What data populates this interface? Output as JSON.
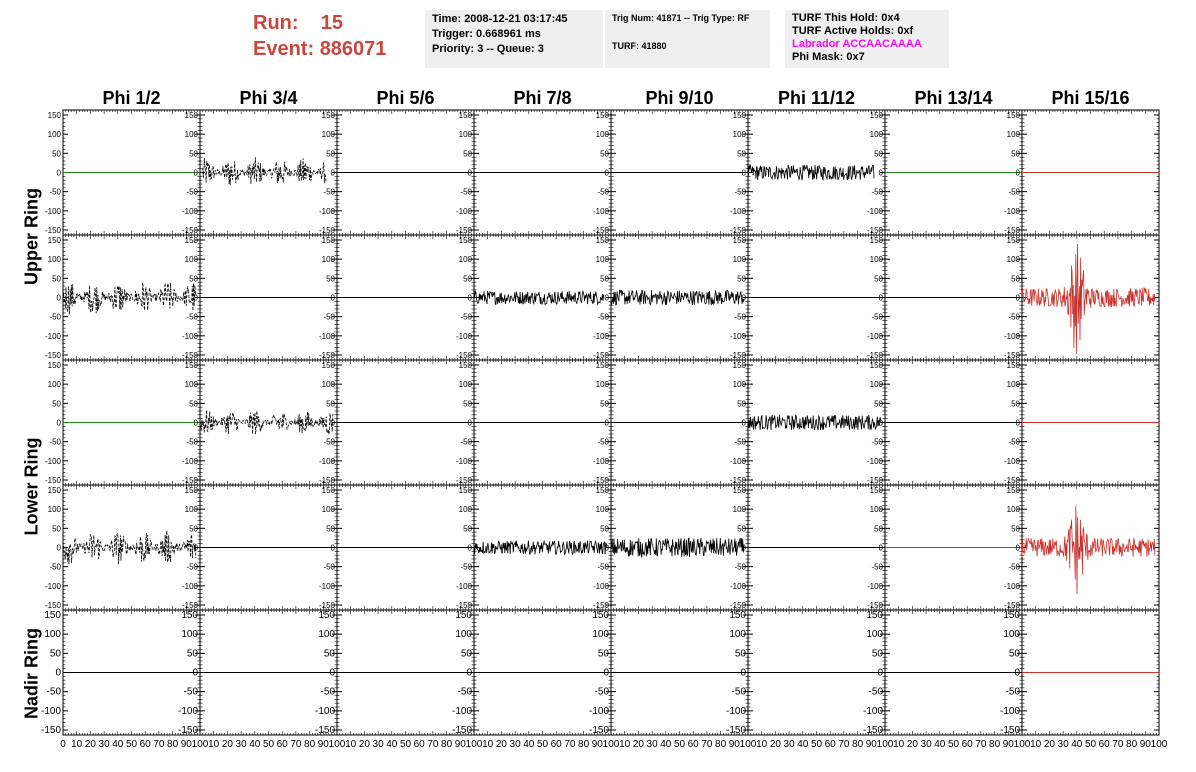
{
  "header": {
    "run_label": "Run:",
    "run_value": "15",
    "event_label": "Event:",
    "event_value": "886071"
  },
  "info_box_1": {
    "time": "Time: 2008-12-21 03:17:45",
    "trigger": "Trigger: 0.668961 ms",
    "priority": "Priority: 3 -- Queue: 3"
  },
  "info_box_2": {
    "trig": "Trig Num: 41871 -- Trig Type: RF",
    "turf": "TURF: 41880"
  },
  "info_box_3": {
    "this_hold": "TURF This Hold: 0x4",
    "active_holds": "TURF Active Holds: 0xf",
    "labrador": "Labrador ACCAACAAAA",
    "phi_mask": "Phi Mask: 0x7"
  },
  "colors": {
    "header_red": "#c8473f",
    "labrador_magenta": "#ee11ee",
    "trace_black": "#000000",
    "trace_green": "#1f8a1f",
    "trace_red": "#c8322d",
    "box_gray": "#efefef"
  },
  "chart_data": {
    "type": "line",
    "columns": [
      "Phi 1/2",
      "Phi 3/4",
      "Phi 5/6",
      "Phi 7/8",
      "Phi 9/10",
      "Phi 11/12",
      "Phi 13/14",
      "Phi 15/16"
    ],
    "ring_labels": [
      {
        "label": "Upper Ring",
        "rows": [
          0,
          1
        ]
      },
      {
        "label": "Lower Ring",
        "rows": [
          2,
          3
        ]
      },
      {
        "label": "Nadir Ring",
        "rows": [
          4
        ]
      }
    ],
    "xlim": [
      0,
      100
    ],
    "ylim": [
      -150,
      150
    ],
    "x_tick_labels": [
      "0",
      "10",
      "20",
      "30",
      "40",
      "50",
      "60",
      "70",
      "80",
      "90",
      "100"
    ],
    "y_tick_labels": [
      "150",
      "100",
      "50",
      "0",
      "-50",
      "-100",
      "-150"
    ],
    "panels": [
      [
        {
          "style": "flat",
          "color": "green"
        },
        {
          "style": "dashed",
          "color": "black",
          "amp": 40,
          "x": [
            2,
            92
          ]
        },
        {
          "style": "flat",
          "color": "black"
        },
        {
          "style": "flat",
          "color": "black"
        },
        {
          "style": "flat",
          "color": "black"
        },
        {
          "style": "noise",
          "color": "black",
          "amp": 20,
          "x": [
            0,
            92
          ]
        },
        {
          "style": "flat",
          "color": "green"
        },
        {
          "style": "flat",
          "color": "red"
        }
      ],
      [
        {
          "style": "dashed",
          "color": "black",
          "amp": 45,
          "x": [
            0,
            97
          ]
        },
        {
          "style": "flat",
          "color": "black"
        },
        {
          "style": "flat",
          "color": "black"
        },
        {
          "style": "noise",
          "color": "black",
          "amp": 18,
          "x": [
            0,
            95
          ]
        },
        {
          "style": "noise",
          "color": "black",
          "amp": 20,
          "x": [
            0,
            97
          ]
        },
        {
          "style": "flat",
          "color": "black"
        },
        {
          "style": "flat",
          "color": "black"
        },
        {
          "style": "burst",
          "color": "red",
          "amp": 25,
          "burst_center": 40,
          "burst_amp": 150,
          "x": [
            0,
            97
          ]
        }
      ],
      [
        {
          "style": "flat",
          "color": "green"
        },
        {
          "style": "dashed",
          "color": "black",
          "amp": 35,
          "x": [
            0,
            97
          ]
        },
        {
          "style": "flat",
          "color": "black"
        },
        {
          "style": "flat",
          "color": "black"
        },
        {
          "style": "flat",
          "color": "black"
        },
        {
          "style": "noise",
          "color": "black",
          "amp": 20,
          "x": [
            0,
            97
          ]
        },
        {
          "style": "flat",
          "color": "black"
        },
        {
          "style": "flat",
          "color": "red"
        }
      ],
      [
        {
          "style": "dashed",
          "color": "black",
          "amp": 45,
          "x": [
            0,
            97
          ]
        },
        {
          "style": "flat",
          "color": "black"
        },
        {
          "style": "flat",
          "color": "black"
        },
        {
          "style": "noise",
          "color": "black",
          "amp": 18,
          "x": [
            0,
            97
          ]
        },
        {
          "style": "noise",
          "color": "black",
          "amp": 25,
          "x": [
            0,
            97
          ]
        },
        {
          "style": "flat",
          "color": "black"
        },
        {
          "style": "flat",
          "color": "red"
        },
        {
          "style": "burst",
          "color": "red",
          "amp": 25,
          "burst_center": 40,
          "burst_amp": 130,
          "x": [
            0,
            97
          ]
        }
      ],
      [
        {
          "style": "flat",
          "color": "black"
        },
        {
          "style": "flat",
          "color": "black"
        },
        {
          "style": "flat",
          "color": "black"
        },
        {
          "style": "flat",
          "color": "black"
        },
        {
          "style": "flat",
          "color": "black"
        },
        {
          "style": "flat",
          "color": "black"
        },
        {
          "style": "flat",
          "color": "black"
        },
        {
          "style": "flat",
          "color": "red"
        }
      ]
    ]
  }
}
